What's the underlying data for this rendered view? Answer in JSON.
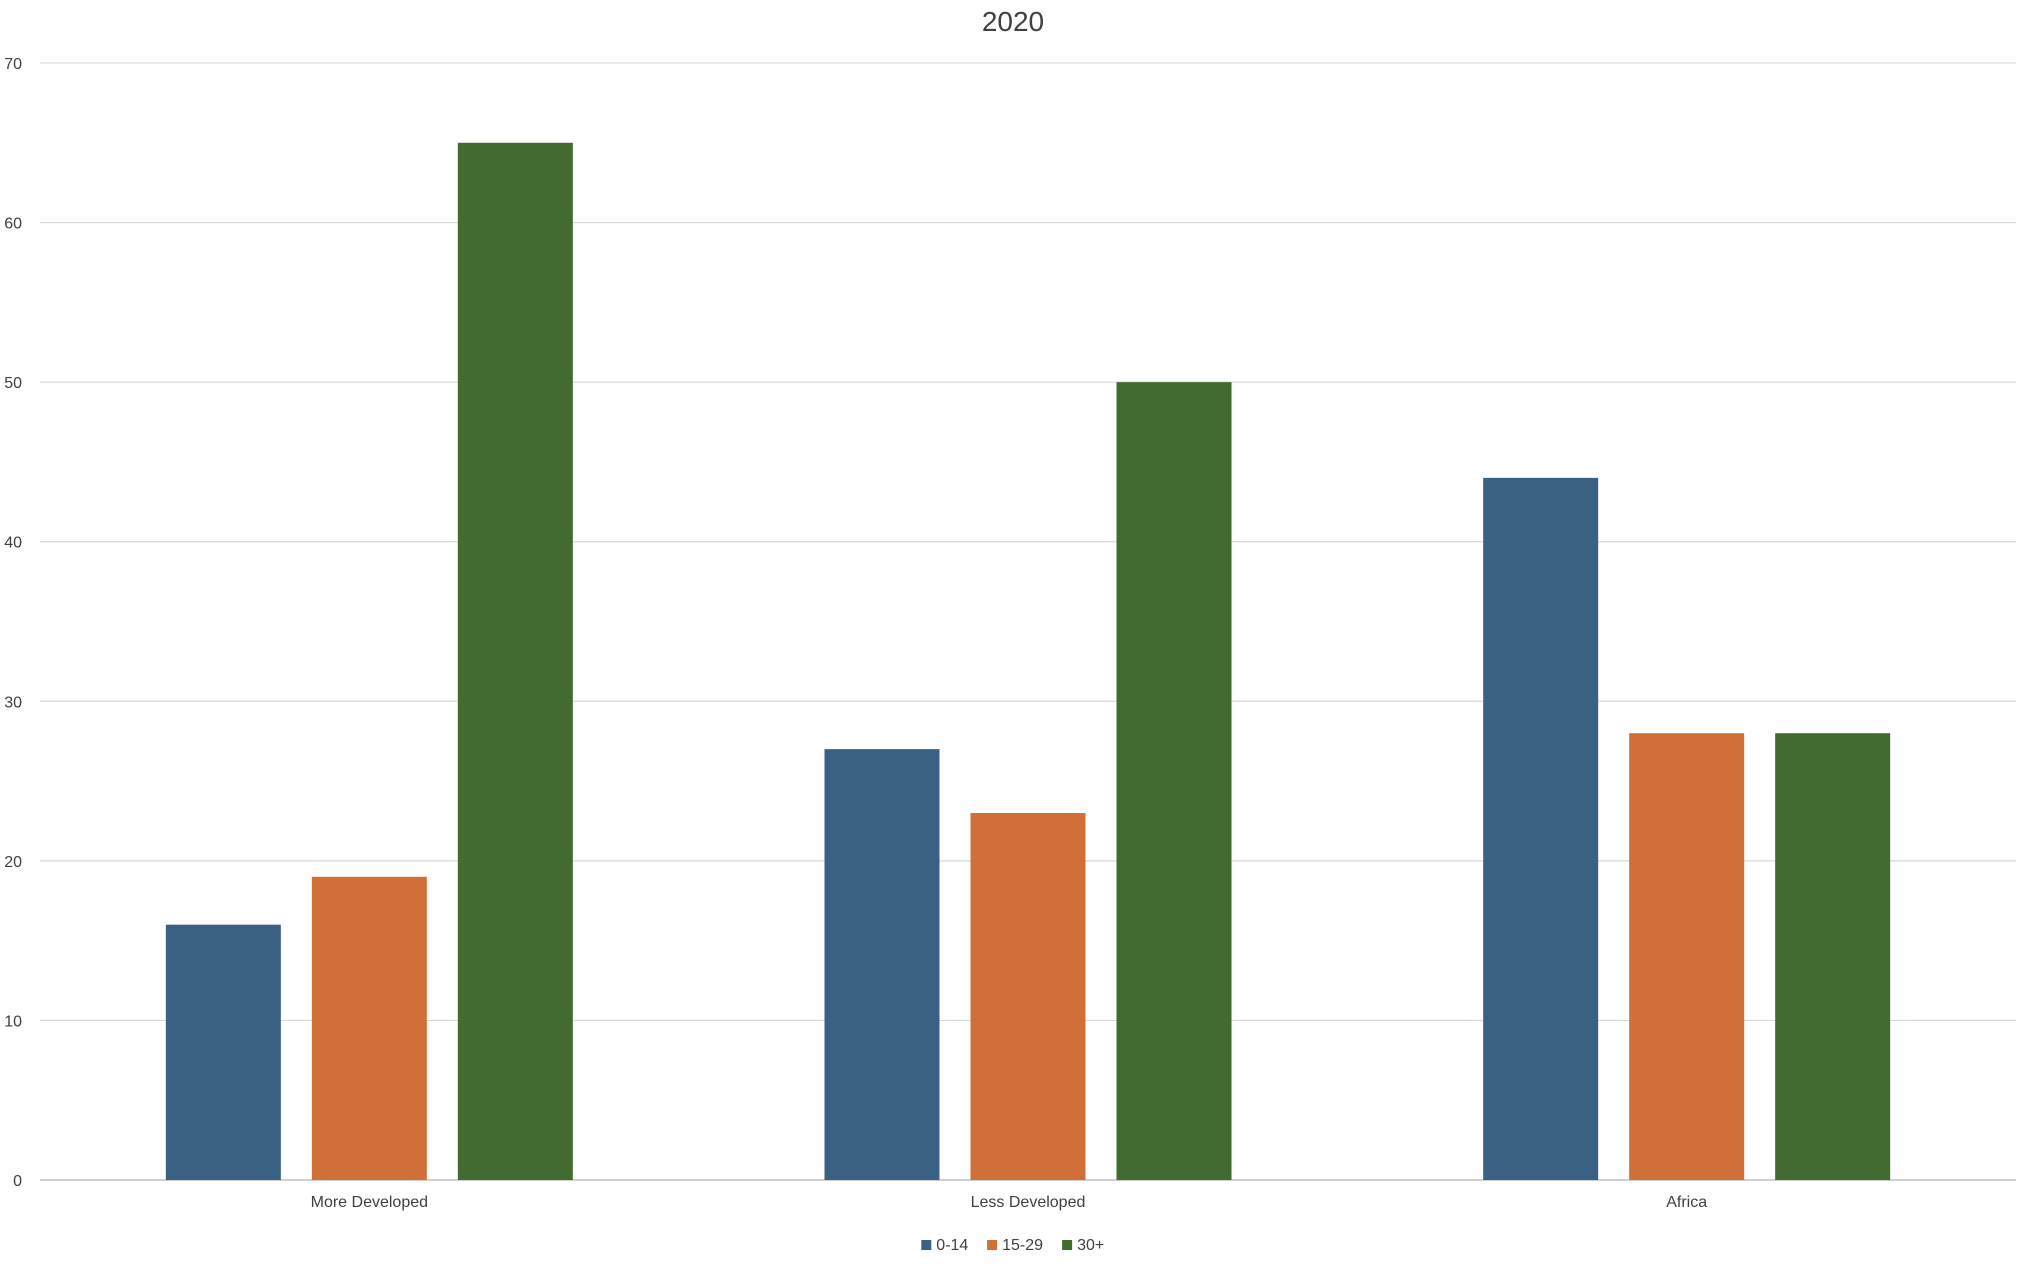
{
  "chart_data": {
    "type": "bar",
    "title": "2020",
    "xlabel": "",
    "ylabel": "",
    "categories": [
      "More Developed",
      "Less Developed",
      "Africa"
    ],
    "series": [
      {
        "name": "0-14",
        "color": "#3a6083",
        "values": [
          16,
          27,
          44
        ]
      },
      {
        "name": "15-29",
        "color": "#d07038",
        "values": [
          19,
          23,
          28
        ]
      },
      {
        "name": "30+",
        "color": "#426b30",
        "values": [
          65,
          50,
          28
        ]
      }
    ],
    "ylim": [
      0,
      70
    ],
    "yticks": [
      "0",
      "10",
      "20",
      "30",
      "40",
      "50",
      "60",
      "70"
    ],
    "grid": true,
    "legend_position": "bottom"
  }
}
